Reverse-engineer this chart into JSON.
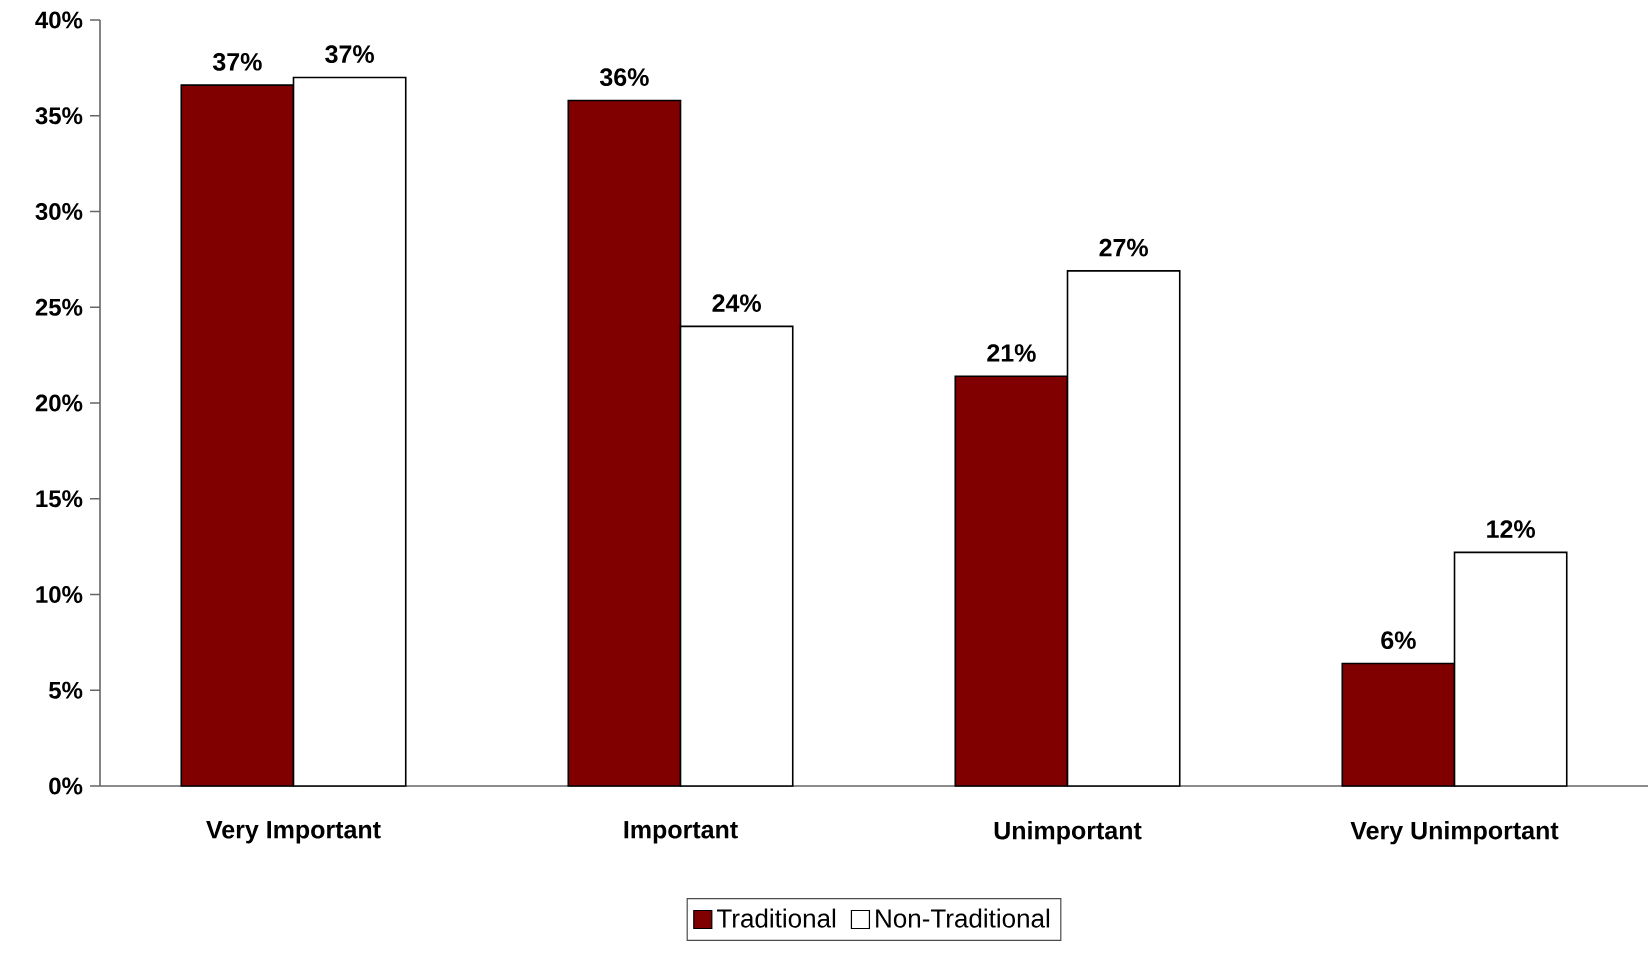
{
  "chart_data": {
    "type": "bar",
    "categories": [
      "Very Important",
      "Important",
      "Unimportant",
      "Very Unimportant"
    ],
    "series": [
      {
        "name": "Traditional",
        "color": "#800000",
        "values": [
          36.6,
          35.8,
          21.4,
          6.4
        ],
        "value_labels": [
          "37%",
          "36%",
          "21%",
          "6%"
        ]
      },
      {
        "name": "Non-Traditional",
        "color": "#ffffff",
        "values": [
          37.0,
          24.0,
          26.9,
          12.2
        ],
        "value_labels": [
          "37%",
          "24%",
          "27%",
          "12%"
        ]
      }
    ],
    "ylim": [
      0,
      40
    ],
    "yticks": [
      {
        "value": 0,
        "label": "0%"
      },
      {
        "value": 5,
        "label": "5%"
      },
      {
        "value": 10,
        "label": "10%"
      },
      {
        "value": 15,
        "label": "15%"
      },
      {
        "value": 20,
        "label": "20%"
      },
      {
        "value": 25,
        "label": "25%"
      },
      {
        "value": 30,
        "label": "30%"
      },
      {
        "value": 35,
        "label": "35%"
      },
      {
        "value": 40,
        "label": "40%"
      }
    ],
    "legend": "bottom"
  }
}
